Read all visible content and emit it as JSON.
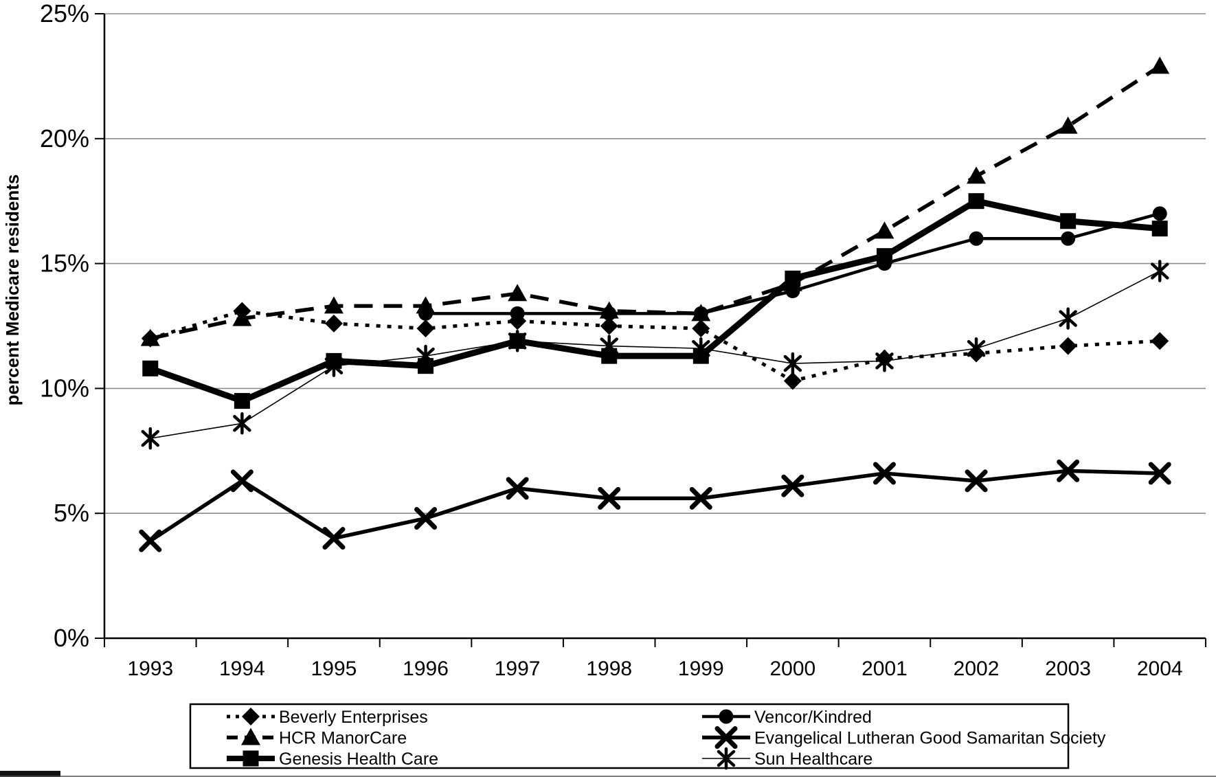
{
  "chart_data": {
    "type": "line",
    "title": "",
    "xlabel": "",
    "ylabel": "percent Medicare residents",
    "categories": [
      "1993",
      "1994",
      "1995",
      "1996",
      "1997",
      "1998",
      "1999",
      "2000",
      "2001",
      "2002",
      "2003",
      "2004"
    ],
    "y_ticks": [
      {
        "value": 0,
        "label": "0%"
      },
      {
        "value": 5,
        "label": "5%"
      },
      {
        "value": 10,
        "label": "10%"
      },
      {
        "value": 15,
        "label": "15%"
      },
      {
        "value": 20,
        "label": "20%"
      },
      {
        "value": 25,
        "label": "25%"
      }
    ],
    "ylim": [
      0,
      25
    ],
    "grid": "horizontal",
    "legend_position": "bottom",
    "series": [
      {
        "name": "Beverly Enterprises",
        "marker": "diamond",
        "line": "dotted",
        "weight": "medium",
        "values": [
          12.0,
          13.1,
          12.6,
          12.4,
          12.7,
          12.5,
          12.4,
          10.3,
          11.2,
          11.4,
          11.7,
          11.9
        ]
      },
      {
        "name": "HCR ManorCare",
        "marker": "triangle",
        "line": "dashed",
        "weight": "medium",
        "values": [
          12.0,
          12.8,
          13.3,
          13.3,
          13.8,
          13.1,
          13.0,
          14.2,
          16.3,
          18.5,
          20.5,
          22.9
        ]
      },
      {
        "name": "Genesis Health Care",
        "marker": "square",
        "line": "solid",
        "weight": "thick",
        "values": [
          10.8,
          9.5,
          11.1,
          10.9,
          11.9,
          11.3,
          11.3,
          14.4,
          15.3,
          17.5,
          16.7,
          16.4
        ]
      },
      {
        "name": "Vencor/Kindred",
        "marker": "circle",
        "line": "solid",
        "weight": "medium",
        "values": [
          null,
          null,
          null,
          13.0,
          13.0,
          13.0,
          13.0,
          13.9,
          15.0,
          16.0,
          16.0,
          17.0
        ]
      },
      {
        "name": "Evangelical Lutheran Good Samaritan Society",
        "marker": "x",
        "line": "solid",
        "weight": "medium",
        "values": [
          3.9,
          6.3,
          4.0,
          4.8,
          6.0,
          5.6,
          5.6,
          6.1,
          6.6,
          6.3,
          6.7,
          6.6
        ]
      },
      {
        "name": "Sun Healthcare",
        "marker": "asterisk",
        "line": "solid",
        "weight": "thin",
        "values": [
          8.0,
          8.6,
          10.9,
          11.3,
          11.9,
          11.7,
          11.6,
          11.0,
          11.1,
          11.6,
          12.8,
          14.7
        ]
      }
    ],
    "legend_columns": [
      [
        "Beverly Enterprises",
        "HCR ManorCare",
        "Genesis Health Care"
      ],
      [
        "Vencor/Kindred",
        "Evangelical Lutheran Good Samaritan Society",
        "Sun Healthcare"
      ]
    ]
  },
  "colors": {
    "series": "#000000",
    "grid": "#8c8c8c",
    "axis": "#000000",
    "background": "#ffffff",
    "legend_border": "#000000"
  }
}
